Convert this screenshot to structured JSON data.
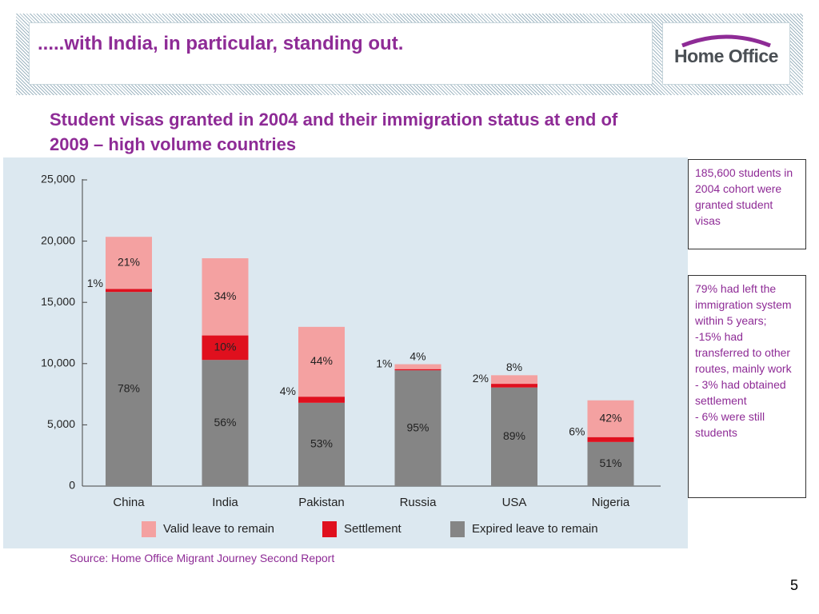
{
  "slide": {
    "title": ".....with India, in particular, standing out.",
    "logo_text": "Home Office",
    "chart_heading": "Student visas granted in 2004 and their immigration status at end of 2009 – high volume countries",
    "source": "Source: Home Office Migrant Journey Second Report",
    "page_number": "5"
  },
  "notes": {
    "box1": "185,600 students in 2004 cohort were granted student visas",
    "box2_lines": [
      "79% had left the immigration system within 5 years;",
      "-15% had transferred to other routes, mainly work",
      "- 3% had obtained settlement",
      "- 6% were still students"
    ]
  },
  "colors": {
    "title": "#8e2b96",
    "valid": "#f4a1a1",
    "settlement": "#e0101e",
    "expired": "#858585",
    "panel": "#dce8f0"
  },
  "chart_data": {
    "type": "bar",
    "stacked": true,
    "categories": [
      "China",
      "India",
      "Pakistan",
      "Russia",
      "USA",
      "Nigeria"
    ],
    "ylim": [
      0,
      25000
    ],
    "yticks": [
      "0",
      "5,000",
      "10,000",
      "15,000",
      "20,000",
      "25,000"
    ],
    "series": [
      {
        "name": "Expired leave to remain",
        "values": [
          15850,
          10300,
          6800,
          9450,
          8050,
          3600
        ],
        "labels": [
          "78%",
          "56%",
          "53%",
          "95%",
          "89%",
          "51%"
        ]
      },
      {
        "name": "Settlement",
        "values": [
          250,
          2000,
          500,
          100,
          300,
          400
        ],
        "labels": [
          "1%",
          "10%",
          "4%",
          "1%",
          "2%",
          "6%"
        ]
      },
      {
        "name": "Valid leave to remain",
        "values": [
          4250,
          6300,
          5700,
          400,
          700,
          3000
        ],
        "labels": [
          "21%",
          "34%",
          "44%",
          "4%",
          "8%",
          "42%"
        ]
      }
    ],
    "legend": {
      "placement": "bottom",
      "entries": [
        "Valid leave to remain",
        "Settlement",
        "Expired leave to remain"
      ]
    }
  }
}
